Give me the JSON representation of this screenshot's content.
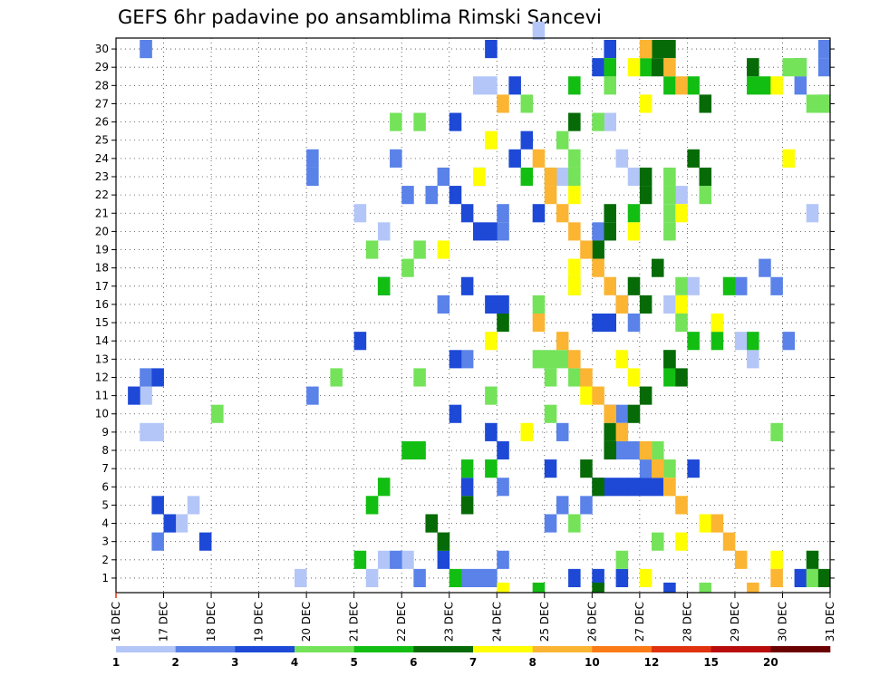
{
  "chart_data": {
    "type": "heatmap",
    "title": "GEFS 6hr padavine po ansamblima Rimski Sancevi",
    "xlabel": "",
    "ylabel": "",
    "x_tick_labels": [
      "16 DEC",
      "17 DEC",
      "18 DEC",
      "19 DEC",
      "20 DEC",
      "21 DEC",
      "22 DEC",
      "23 DEC",
      "24 DEC",
      "25 DEC",
      "26 DEC",
      "27 DEC",
      "28 DEC",
      "29 DEC",
      "30 DEC",
      "31 DEC"
    ],
    "y_tick_labels": [
      "1",
      "2",
      "3",
      "4",
      "5",
      "6",
      "7",
      "8",
      "9",
      "10",
      "11",
      "12",
      "13",
      "14",
      "15",
      "16",
      "17",
      "18",
      "19",
      "20",
      "21",
      "22",
      "23",
      "24",
      "25",
      "26",
      "27",
      "28",
      "29",
      "30"
    ],
    "time_steps": 60,
    "ensemble_members": 30,
    "grid": true,
    "colorbar": {
      "placement": "bottom",
      "labels": [
        "1",
        "2",
        "3",
        "4",
        "5",
        "6",
        "7",
        "8",
        "10",
        "12",
        "15",
        "20"
      ],
      "colors": [
        "#b3c6f7",
        "#5a82e8",
        "#1d49d6",
        "#74e35a",
        "#13be13",
        "#066b06",
        "#ffff00",
        "#fbb533",
        "#fb7b16",
        "#e0320f",
        "#b80b0b",
        "#6b0000"
      ]
    },
    "cells": [
      [
        0,
        30,
        35
      ],
      [
        0,
        29,
        2
      ],
      [
        0,
        27,
        30
      ],
      [
        0,
        27,
        31
      ],
      [
        0,
        25,
        41
      ],
      [
        0,
        23,
        42
      ],
      [
        0,
        22,
        43
      ],
      [
        0,
        22,
        37
      ],
      [
        0,
        21,
        47
      ],
      [
        0,
        20,
        58
      ],
      [
        0,
        20,
        20
      ],
      [
        0,
        19,
        22
      ],
      [
        0,
        16,
        48
      ],
      [
        0,
        15,
        46
      ],
      [
        0,
        14,
        50
      ],
      [
        0,
        13,
        52
      ],
      [
        0,
        12,
        53
      ],
      [
        0,
        11,
        2
      ],
      [
        0,
        10,
        2
      ],
      [
        0,
        8,
        3
      ],
      [
        0,
        8,
        2
      ],
      [
        0,
        4,
        6
      ],
      [
        0,
        3,
        4
      ],
      [
        0,
        3,
        5
      ],
      [
        0,
        1,
        24
      ],
      [
        0,
        1,
        22
      ],
      [
        0,
        0,
        15
      ],
      [
        0,
        0,
        21
      ],
      [
        1,
        29,
        2
      ],
      [
        1,
        29,
        59
      ],
      [
        1,
        28,
        57
      ],
      [
        1,
        28,
        59
      ],
      [
        1,
        27,
        57
      ],
      [
        1,
        26,
        59
      ],
      [
        1,
        23,
        16
      ],
      [
        1,
        23,
        23
      ],
      [
        1,
        22,
        16
      ],
      [
        1,
        22,
        27
      ],
      [
        1,
        21,
        24
      ],
      [
        1,
        21,
        26
      ],
      [
        1,
        20,
        32
      ],
      [
        1,
        19,
        32
      ],
      [
        1,
        19,
        40
      ],
      [
        1,
        18,
        40
      ],
      [
        1,
        17,
        54
      ],
      [
        1,
        16,
        52
      ],
      [
        1,
        16,
        55
      ],
      [
        1,
        15,
        42
      ],
      [
        1,
        15,
        27
      ],
      [
        1,
        14,
        43
      ],
      [
        1,
        13,
        56
      ],
      [
        1,
        12,
        29
      ],
      [
        1,
        11,
        2
      ],
      [
        1,
        10,
        16
      ],
      [
        1,
        9,
        41
      ],
      [
        1,
        9,
        42
      ],
      [
        1,
        8,
        37
      ],
      [
        1,
        7,
        42
      ],
      [
        1,
        7,
        43
      ],
      [
        1,
        6,
        45
      ],
      [
        1,
        6,
        44
      ],
      [
        1,
        5,
        32
      ],
      [
        1,
        4,
        39
      ],
      [
        1,
        4,
        37
      ],
      [
        1,
        3,
        36
      ],
      [
        1,
        2,
        3
      ],
      [
        1,
        1,
        23
      ],
      [
        1,
        1,
        32
      ],
      [
        1,
        0,
        25
      ],
      [
        1,
        0,
        30
      ],
      [
        1,
        0,
        29
      ],
      [
        1,
        0,
        31
      ],
      [
        2,
        29,
        31
      ],
      [
        2,
        29,
        41
      ],
      [
        2,
        28,
        40
      ],
      [
        2,
        27,
        33
      ],
      [
        2,
        25,
        28
      ],
      [
        2,
        24,
        34
      ],
      [
        2,
        23,
        33
      ],
      [
        2,
        22,
        30
      ],
      [
        2,
        21,
        28
      ],
      [
        2,
        20,
        29
      ],
      [
        2,
        20,
        35
      ],
      [
        2,
        19,
        30
      ],
      [
        2,
        19,
        31
      ],
      [
        2,
        16,
        29
      ],
      [
        2,
        16,
        22
      ],
      [
        2,
        15,
        31
      ],
      [
        2,
        15,
        32
      ],
      [
        2,
        14,
        40
      ],
      [
        2,
        14,
        41
      ],
      [
        2,
        13,
        20
      ],
      [
        2,
        12,
        28
      ],
      [
        2,
        11,
        3
      ],
      [
        2,
        10,
        1
      ],
      [
        2,
        9,
        28
      ],
      [
        2,
        8,
        31
      ],
      [
        2,
        7,
        32
      ],
      [
        2,
        6,
        48
      ],
      [
        2,
        6,
        36
      ],
      [
        2,
        5,
        40
      ],
      [
        2,
        5,
        29
      ],
      [
        2,
        5,
        42
      ],
      [
        2,
        5,
        43
      ],
      [
        2,
        5,
        44
      ],
      [
        2,
        5,
        45
      ],
      [
        2,
        5,
        41
      ],
      [
        2,
        4,
        3
      ],
      [
        2,
        3,
        4
      ],
      [
        2,
        2,
        7
      ],
      [
        2,
        1,
        27
      ],
      [
        2,
        0,
        38
      ],
      [
        2,
        0,
        40
      ],
      [
        2,
        0,
        42
      ],
      [
        2,
        0,
        57
      ],
      [
        2,
        -1,
        46
      ],
      [
        3,
        28,
        56
      ],
      [
        3,
        28,
        57
      ],
      [
        3,
        26,
        59
      ],
      [
        3,
        25,
        40
      ],
      [
        3,
        22,
        46
      ],
      [
        3,
        21,
        46
      ],
      [
        3,
        20,
        46
      ],
      [
        3,
        21,
        49
      ],
      [
        3,
        19,
        46
      ],
      [
        3,
        18,
        21
      ],
      [
        3,
        17,
        24
      ],
      [
        3,
        16,
        38
      ],
      [
        3,
        16,
        47
      ],
      [
        3,
        15,
        35
      ],
      [
        3,
        14,
        47
      ],
      [
        3,
        12,
        37
      ],
      [
        3,
        11,
        38
      ],
      [
        3,
        11,
        18
      ],
      [
        3,
        11,
        25
      ],
      [
        3,
        10,
        31
      ],
      [
        3,
        9,
        8
      ],
      [
        3,
        9,
        36
      ],
      [
        3,
        8,
        55
      ],
      [
        3,
        7,
        45
      ],
      [
        3,
        6,
        46
      ],
      [
        3,
        4,
        21
      ],
      [
        3,
        3,
        38
      ],
      [
        3,
        2,
        45
      ],
      [
        3,
        1,
        42
      ],
      [
        3,
        0,
        58
      ],
      [
        3,
        -1,
        49
      ],
      [
        3,
        26,
        58
      ],
      [
        3,
        27,
        41
      ],
      [
        3,
        25,
        23
      ],
      [
        3,
        25,
        25
      ],
      [
        3,
        26,
        34
      ],
      [
        3,
        18,
        25
      ],
      [
        3,
        23,
        38
      ],
      [
        3,
        24,
        37
      ],
      [
        3,
        22,
        36
      ],
      [
        3,
        22,
        38
      ],
      [
        3,
        12,
        36
      ],
      [
        3,
        12,
        35
      ],
      [
        3,
        11,
        36
      ],
      [
        4,
        27,
        54
      ],
      [
        4,
        27,
        53
      ],
      [
        4,
        27,
        48
      ],
      [
        4,
        27,
        46
      ],
      [
        4,
        28,
        44
      ],
      [
        4,
        28,
        41
      ],
      [
        4,
        27,
        38
      ],
      [
        4,
        20,
        43
      ],
      [
        4,
        22,
        34
      ],
      [
        4,
        16,
        22
      ],
      [
        4,
        16,
        51
      ],
      [
        4,
        13,
        53
      ],
      [
        4,
        13,
        48
      ],
      [
        4,
        13,
        50
      ],
      [
        4,
        12,
        46
      ],
      [
        4,
        11,
        46
      ],
      [
        4,
        7,
        24
      ],
      [
        4,
        7,
        25
      ],
      [
        4,
        6,
        29
      ],
      [
        4,
        6,
        31
      ],
      [
        4,
        5,
        22
      ],
      [
        4,
        4,
        21
      ],
      [
        4,
        3,
        26
      ],
      [
        4,
        2,
        27
      ],
      [
        4,
        1,
        20
      ],
      [
        4,
        0,
        28
      ],
      [
        4,
        -1,
        35
      ],
      [
        5,
        29,
        46
      ],
      [
        5,
        29,
        45
      ],
      [
        5,
        28,
        45
      ],
      [
        5,
        28,
        53
      ],
      [
        5,
        26,
        49
      ],
      [
        5,
        25,
        38
      ],
      [
        5,
        23,
        48
      ],
      [
        5,
        22,
        49
      ],
      [
        5,
        22,
        44
      ],
      [
        5,
        21,
        44
      ],
      [
        5,
        20,
        41
      ],
      [
        5,
        19,
        41
      ],
      [
        5,
        18,
        40
      ],
      [
        5,
        17,
        45
      ],
      [
        5,
        16,
        43
      ],
      [
        5,
        15,
        44
      ],
      [
        5,
        14,
        32
      ],
      [
        5,
        12,
        46
      ],
      [
        5,
        11,
        47
      ],
      [
        5,
        10,
        44
      ],
      [
        5,
        9,
        43
      ],
      [
        5,
        8,
        41
      ],
      [
        5,
        7,
        41
      ],
      [
        5,
        6,
        39
      ],
      [
        5,
        5,
        40
      ],
      [
        5,
        4,
        29
      ],
      [
        5,
        3,
        26
      ],
      [
        5,
        2,
        27
      ],
      [
        5,
        1,
        58
      ],
      [
        5,
        0,
        59
      ],
      [
        5,
        -1,
        40
      ],
      [
        6,
        29,
        44
      ],
      [
        6,
        28,
        43
      ],
      [
        6,
        27,
        55
      ],
      [
        6,
        26,
        44
      ],
      [
        6,
        24,
        31
      ],
      [
        6,
        23,
        56
      ],
      [
        6,
        22,
        30
      ],
      [
        6,
        21,
        38
      ],
      [
        6,
        20,
        47
      ],
      [
        6,
        19,
        43
      ],
      [
        6,
        18,
        27
      ],
      [
        6,
        17,
        38
      ],
      [
        6,
        16,
        38
      ],
      [
        6,
        15,
        47
      ],
      [
        6,
        14,
        50
      ],
      [
        6,
        13,
        31
      ],
      [
        6,
        12,
        42
      ],
      [
        6,
        11,
        43
      ],
      [
        6,
        10,
        39
      ],
      [
        6,
        8,
        34
      ],
      [
        6,
        7,
        44
      ],
      [
        6,
        6,
        45
      ],
      [
        6,
        5,
        46
      ],
      [
        6,
        4,
        47
      ],
      [
        6,
        3,
        49
      ],
      [
        6,
        2,
        47
      ],
      [
        6,
        1,
        55
      ],
      [
        6,
        0,
        44
      ],
      [
        6,
        -1,
        32
      ],
      [
        7,
        29,
        44
      ],
      [
        7,
        28,
        46
      ],
      [
        7,
        27,
        47
      ],
      [
        7,
        26,
        32
      ],
      [
        7,
        23,
        35
      ],
      [
        7,
        22,
        36
      ],
      [
        7,
        21,
        36
      ],
      [
        7,
        20,
        37
      ],
      [
        7,
        19,
        38
      ],
      [
        7,
        18,
        39
      ],
      [
        7,
        17,
        40
      ],
      [
        7,
        16,
        41
      ],
      [
        7,
        15,
        42
      ],
      [
        7,
        14,
        35
      ],
      [
        7,
        13,
        37
      ],
      [
        7,
        12,
        38
      ],
      [
        7,
        11,
        39
      ],
      [
        7,
        10,
        40
      ],
      [
        7,
        9,
        41
      ],
      [
        7,
        8,
        42
      ],
      [
        7,
        7,
        44
      ],
      [
        7,
        6,
        45
      ],
      [
        7,
        5,
        46
      ],
      [
        7,
        4,
        47
      ],
      [
        7,
        3,
        50
      ],
      [
        7,
        2,
        51
      ],
      [
        7,
        1,
        52
      ],
      [
        7,
        0,
        55
      ],
      [
        7,
        -1,
        53
      ]
    ],
    "cells_note_removed": true
  }
}
